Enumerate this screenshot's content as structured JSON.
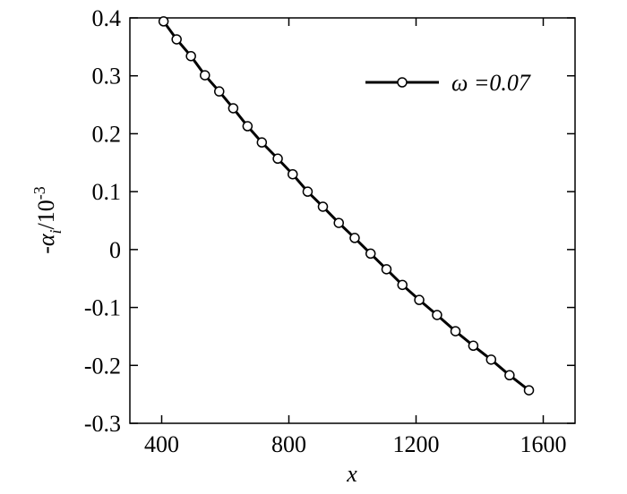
{
  "chart_data": {
    "type": "line",
    "x_label": "x",
    "y_label": [
      "-α",
      "i",
      "/10",
      "-3"
    ],
    "xlim": [
      300,
      1700
    ],
    "ylim": [
      -0.3,
      0.4
    ],
    "xticks": [
      400,
      800,
      1200,
      1600
    ],
    "yticks": [
      -0.3,
      -0.2,
      -0.1,
      0,
      0.1,
      0.2,
      0.3,
      0.4
    ],
    "legend": "upper right",
    "series": [
      {
        "name": "ω =0.07",
        "color": "#000000",
        "x": [
          406,
          447,
          492,
          536,
          581,
          625,
          670,
          715,
          765,
          812,
          859,
          907,
          957,
          1007,
          1057,
          1107,
          1157,
          1210,
          1266,
          1324,
          1380,
          1436,
          1494,
          1555
        ],
        "values": [
          0.394,
          0.363,
          0.334,
          0.301,
          0.273,
          0.244,
          0.213,
          0.185,
          0.157,
          0.13,
          0.1,
          0.074,
          0.046,
          0.02,
          -0.007,
          -0.034,
          -0.061,
          -0.087,
          -0.113,
          -0.141,
          -0.166,
          -0.19,
          -0.217,
          -0.243
        ]
      }
    ]
  }
}
